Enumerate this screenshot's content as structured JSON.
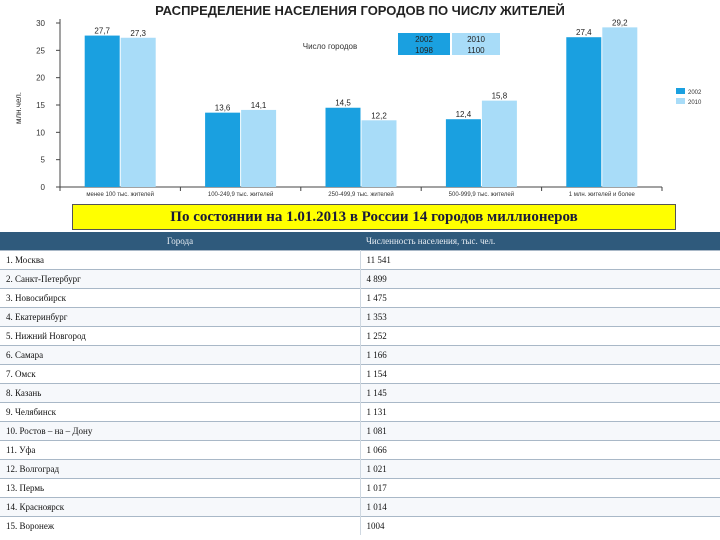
{
  "chart_data": {
    "type": "bar",
    "title": "РАСПРЕДЕЛЕНИЕ НАСЕЛЕНИЯ ГОРОДОВ ПО ЧИСЛУ ЖИТЕЛЕЙ",
    "ylabel": "млн.чел.",
    "xlabel": "",
    "ylim": [
      0,
      30
    ],
    "yticks": [
      0,
      5,
      10,
      15,
      20,
      25,
      30
    ],
    "categories": [
      "менее 100 тыс. жителей",
      "100-249,9 тыс. жителей",
      "250-499,9 тыс. жителей",
      "500-999,9 тыс. жителей",
      "1 млн. жителей и более"
    ],
    "series": [
      {
        "name": "2002",
        "color": "#1aa0e0",
        "values": [
          27.7,
          13.6,
          14.5,
          12.4,
          27.4
        ]
      },
      {
        "name": "2010",
        "color": "#a8dcf8",
        "values": [
          27.3,
          14.1,
          12.2,
          15.8,
          29.2
        ]
      }
    ],
    "grid": false,
    "legend": "right",
    "inset_table": {
      "label": "Число городов",
      "years": [
        "2002",
        "2010"
      ],
      "counts": [
        "1098",
        "1100"
      ]
    }
  },
  "banner": "По состоянии на 1.01.2013 в России 14 городов миллионеров",
  "table": {
    "headers": [
      "Города",
      "Численность населения, тыс. чел."
    ],
    "rows": [
      [
        "1. Москва",
        "11 541"
      ],
      [
        "2. Санкт-Петербург",
        "4 899"
      ],
      [
        "3. Новосибирск",
        "1 475"
      ],
      [
        "4. Екатеринбург",
        "1 353"
      ],
      [
        "5. Нижний Новгород",
        "1 252"
      ],
      [
        "6. Самара",
        "1 166"
      ],
      [
        "7. Омск",
        "1 154"
      ],
      [
        "8. Казань",
        "1 145"
      ],
      [
        "9. Челябинск",
        "1 131"
      ],
      [
        "10. Ростов – на – Дону",
        "1 081"
      ],
      [
        "11. Уфа",
        "1 066"
      ],
      [
        "12. Волгоград",
        "1 021"
      ],
      [
        "13. Пермь",
        "1 017"
      ],
      [
        "14. Красноярск",
        "1 014"
      ],
      [
        "15. Воронеж",
        "1004"
      ]
    ]
  }
}
